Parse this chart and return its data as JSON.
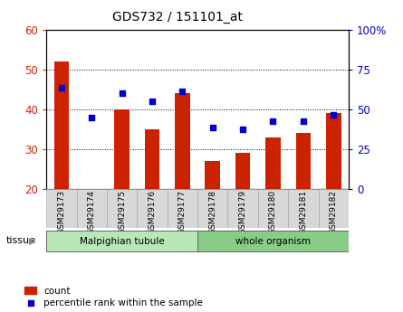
{
  "title": "GDS732 / 151101_at",
  "categories": [
    "GSM29173",
    "GSM29174",
    "GSM29175",
    "GSM29176",
    "GSM29177",
    "GSM29178",
    "GSM29179",
    "GSM29180",
    "GSM29181",
    "GSM29182"
  ],
  "counts": [
    52,
    20,
    40,
    35,
    44,
    27,
    29,
    33,
    34,
    39
  ],
  "percentiles_left_scale": [
    45.5,
    38,
    44,
    42,
    44.5,
    35.5,
    35,
    37,
    37,
    38.5
  ],
  "bar_color": "#cc2200",
  "dot_color": "#0000cc",
  "ylim_left": [
    20,
    60
  ],
  "ylim_right": [
    0,
    100
  ],
  "yticks_left": [
    20,
    30,
    40,
    50,
    60
  ],
  "ytick_labels_left": [
    "20",
    "30",
    "40",
    "50",
    "60"
  ],
  "yticks_right": [
    0,
    25,
    50,
    75,
    100
  ],
  "ytick_labels_right": [
    "0",
    "25",
    "50",
    "75",
    "100%"
  ],
  "left_tick_color": "#cc2200",
  "right_tick_color": "#0000cc",
  "tissue_groups": [
    {
      "label": "Malpighian tubule",
      "start": 0,
      "end": 5,
      "color": "#b8e8b8"
    },
    {
      "label": "whole organism",
      "start": 5,
      "end": 10,
      "color": "#88cc88"
    }
  ],
  "tissue_label": "tissue",
  "legend_count_label": "count",
  "legend_percentile_label": "percentile rank within the sample",
  "bar_bottom": 20,
  "bar_width": 0.5,
  "dot_size": 22
}
